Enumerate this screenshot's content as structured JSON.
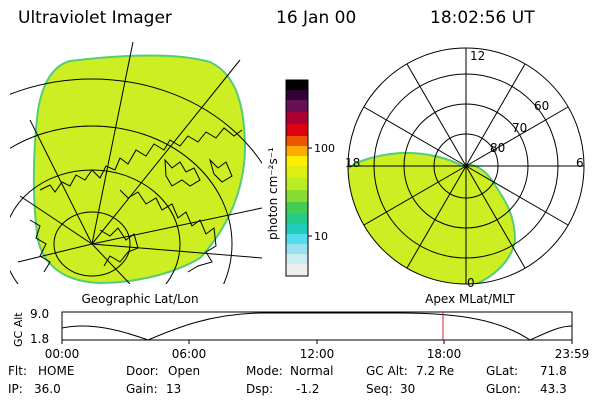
{
  "header": {
    "title": "Ultraviolet Imager",
    "date": "16 Jan 00",
    "time": "18:02:56 UT"
  },
  "panels": {
    "left_caption": "Geographic Lat/Lon",
    "right_caption": "Apex  MLat/MLT"
  },
  "colorbar": {
    "unit_label": "photon cm⁻²s⁻¹",
    "tick_100": "100",
    "tick_10": "10"
  },
  "polar": {
    "label_12": "12",
    "label_18": "18",
    "label_6": "6",
    "label_0": "0",
    "lat_60": "60",
    "lat_70": "70",
    "lat_80": "80"
  },
  "orbit": {
    "y_title": "GC Alt",
    "y_top": "9.0",
    "y_bottom": "1.8",
    "x_ticks": [
      "00:00",
      "06:00",
      "12:00",
      "18:00",
      "23:59"
    ]
  },
  "info": {
    "flt_label": "Flt:",
    "flt_value": "HOME",
    "ip_label": "IP:",
    "ip_value": "36.0",
    "door_label": "Door:",
    "door_value": "Open",
    "gain_label": "Gain:",
    "gain_value": "13",
    "mode_label": "Mode:",
    "mode_value": "Normal",
    "dsp_label": "Dsp:",
    "dsp_value": "-1.2",
    "gcalt_label": "GC Alt:",
    "gcalt_value": "7.2 Re",
    "seq_label": "Seq:",
    "seq_value": "30",
    "glat_label": "GLat:",
    "glat_value": "71.8",
    "glon_label": "GLon:",
    "glon_value": "43.3"
  },
  "colors": {
    "aurora_fill": "#ccee22",
    "aurora_edge": "#55cc77"
  }
}
